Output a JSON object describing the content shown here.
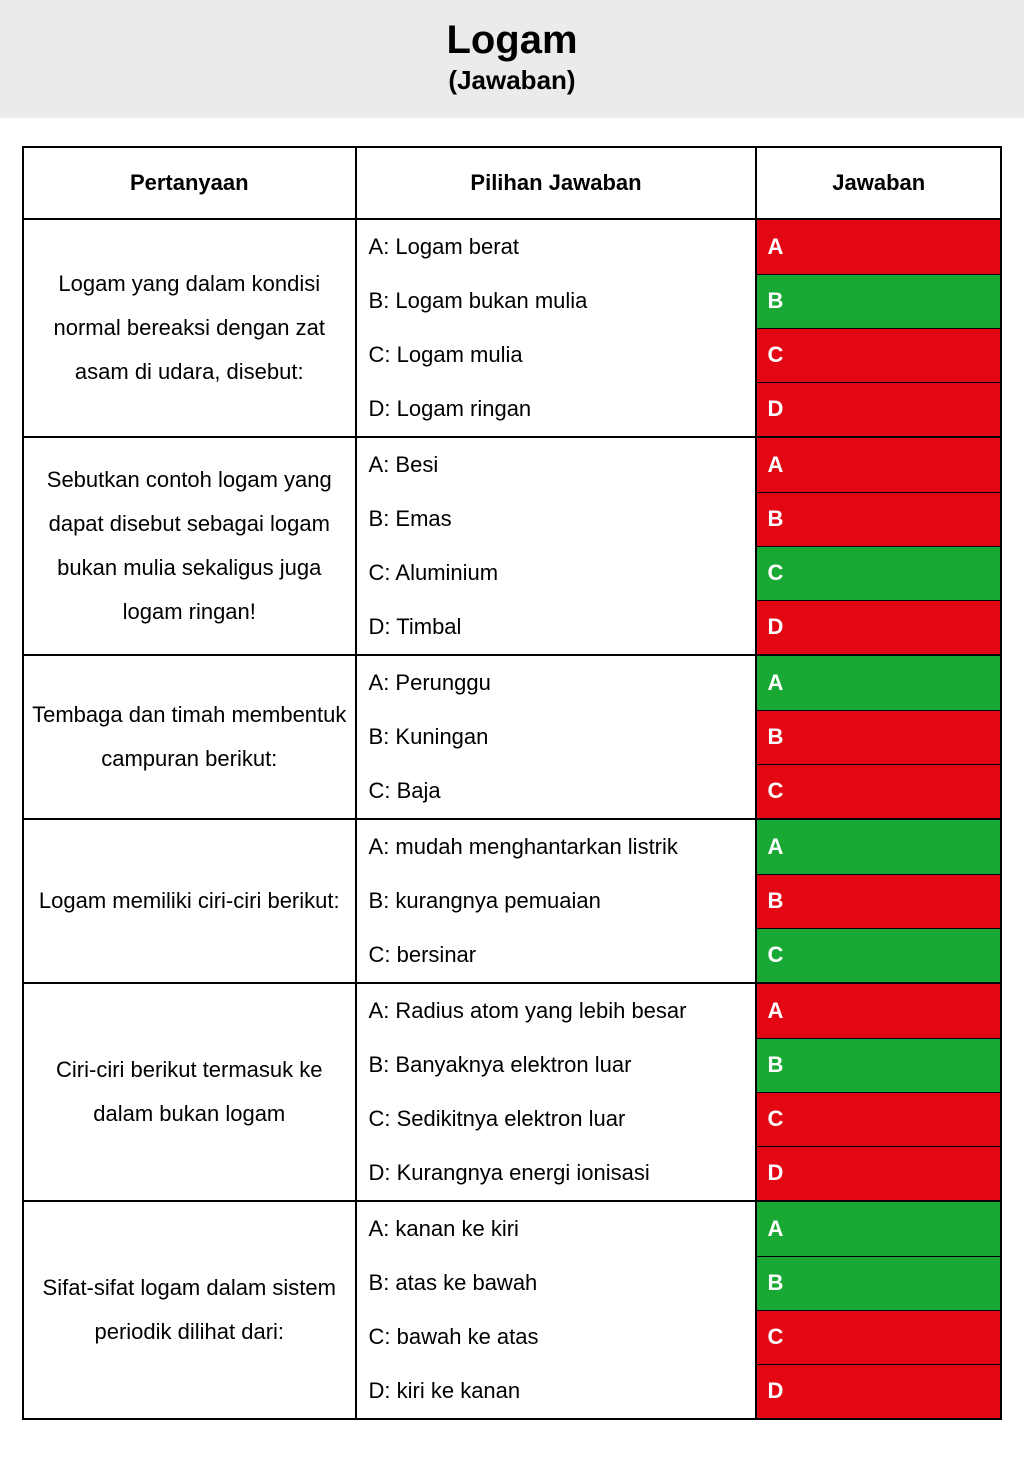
{
  "header": {
    "title": "Logam",
    "subtitle": "(Jawaban)"
  },
  "columns": {
    "question": "Pertanyaan",
    "choices": "Pilihan Jawaban",
    "answer": "Jawaban"
  },
  "colors": {
    "correct": "#18a833",
    "incorrect": "#e30613",
    "header_bg": "#ebebeb",
    "border": "#000000",
    "text": "#000000",
    "answer_text": "#ffffff"
  },
  "typography": {
    "title_fontsize": 40,
    "subtitle_fontsize": 26,
    "header_fontsize": 22,
    "body_fontsize": 22,
    "font_family": "Arial"
  },
  "questions": [
    {
      "text": "Logam yang dalam kondisi normal bereaksi dengan zat asam di udara, disebut:",
      "options": [
        {
          "label": "A: Logam berat",
          "letter": "A",
          "correct": false
        },
        {
          "label": "B: Logam bukan mulia",
          "letter": "B",
          "correct": true
        },
        {
          "label": "C: Logam mulia",
          "letter": "C",
          "correct": false
        },
        {
          "label": "D: Logam ringan",
          "letter": "D",
          "correct": false
        }
      ]
    },
    {
      "text": "Sebutkan contoh logam yang dapat disebut sebagai logam bukan mulia sekaligus juga logam ringan!",
      "options": [
        {
          "label": "A: Besi",
          "letter": "A",
          "correct": false
        },
        {
          "label": "B: Emas",
          "letter": "B",
          "correct": false
        },
        {
          "label": "C: Aluminium",
          "letter": "C",
          "correct": true
        },
        {
          "label": "D: Timbal",
          "letter": "D",
          "correct": false
        }
      ]
    },
    {
      "text": "Tembaga dan timah membentuk campuran berikut:",
      "options": [
        {
          "label": "A: Perunggu",
          "letter": "A",
          "correct": true
        },
        {
          "label": "B: Kuningan",
          "letter": "B",
          "correct": false
        },
        {
          "label": "C: Baja",
          "letter": "C",
          "correct": false
        }
      ]
    },
    {
      "text": "Logam memiliki ciri-ciri berikut:",
      "options": [
        {
          "label": "A: mudah menghantarkan listrik",
          "letter": "A",
          "correct": true
        },
        {
          "label": "B: kurangnya pemuaian",
          "letter": "B",
          "correct": false
        },
        {
          "label": "C: bersinar",
          "letter": "C",
          "correct": true
        }
      ]
    },
    {
      "text": "Ciri-ciri berikut termasuk ke dalam bukan logam",
      "options": [
        {
          "label": "A: Radius atom yang lebih besar",
          "letter": "A",
          "correct": false
        },
        {
          "label": "B: Banyaknya elektron luar",
          "letter": "B",
          "correct": true
        },
        {
          "label": "C: Sedikitnya elektron luar",
          "letter": "C",
          "correct": false
        },
        {
          "label": "D: Kurangnya energi ionisasi",
          "letter": "D",
          "correct": false
        }
      ]
    },
    {
      "text": "Sifat-sifat logam dalam sistem periodik dilihat dari:",
      "options": [
        {
          "label": "A: kanan ke kiri",
          "letter": "A",
          "correct": true
        },
        {
          "label": "B: atas ke bawah",
          "letter": "B",
          "correct": true
        },
        {
          "label": "C: bawah ke atas",
          "letter": "C",
          "correct": false
        },
        {
          "label": "D: kiri ke kanan",
          "letter": "D",
          "correct": false
        }
      ]
    }
  ]
}
